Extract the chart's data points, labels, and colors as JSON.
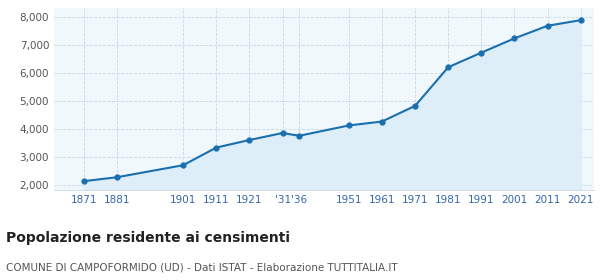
{
  "years": [
    1871,
    1881,
    1901,
    1911,
    1921,
    1931,
    1936,
    1951,
    1961,
    1971,
    1981,
    1991,
    2001,
    2011,
    2021
  ],
  "population": [
    2130,
    2270,
    2700,
    3330,
    3600,
    3850,
    3750,
    4120,
    4260,
    4820,
    6200,
    6720,
    7230,
    7680,
    7880
  ],
  "line_color": "#1a6faf",
  "fill_color": "#ddeef8",
  "marker_color": "#1a6faf",
  "background_color": "#ffffff",
  "plot_bg_color": "#f0f8fc",
  "grid_color": "#c8d8e8",
  "tick_color": "#3366aa",
  "ylim": [
    1800,
    8300
  ],
  "yticks": [
    2000,
    3000,
    4000,
    5000,
    6000,
    7000,
    8000
  ],
  "title": "Popolazione residente ai censimenti",
  "subtitle": "COMUNE DI CAMPOFORMIDO (UD) - Dati ISTAT - Elaborazione TUTTITALIA.IT",
  "title_fontsize": 10,
  "subtitle_fontsize": 7.5,
  "x_ticks": [
    1871,
    1881,
    1901,
    1911,
    1921,
    1931,
    1936,
    1951,
    1961,
    1971,
    1981,
    1991,
    2001,
    2011,
    2021
  ],
  "x_labels": [
    "1871",
    "1881",
    "1901",
    "1911",
    "1921",
    "'31",
    "'36",
    "1951",
    "1961",
    "1971",
    "1981",
    "1991",
    "2001",
    "2011",
    "2021"
  ]
}
